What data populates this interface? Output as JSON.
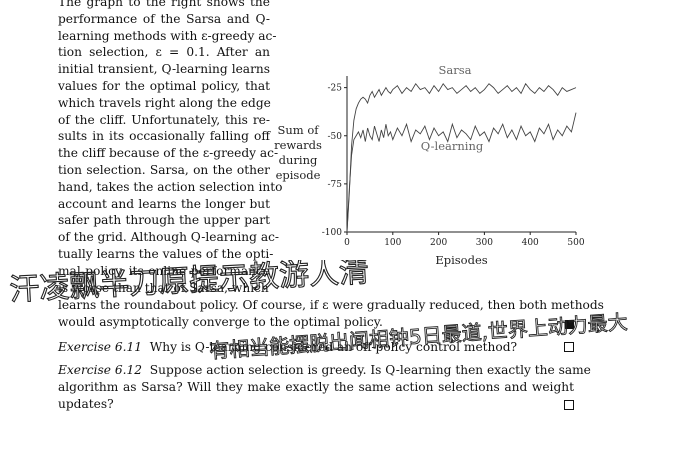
{
  "paragraph": {
    "lines": [
      "The graph to the right shows the",
      "performance of the Sarsa and Q-",
      "learning methods with ε-greedy ac-",
      "tion selection, ε = 0.1. After an",
      "initial transient, Q-learning learns",
      "values for the optimal policy, that",
      "which travels right along the edge",
      "of the cliff. Unfortunately, this re-",
      "sults in its occasionally falling off",
      "the cliff because of the ε-greedy ac-",
      "tion selection. Sarsa, on the other",
      "hand, takes the action selection into",
      "account and learns the longer but",
      "safer path through the upper part",
      "of the grid. Although Q-learning ac-",
      "tually learns the values of the opti-",
      "mal policy, its online performance",
      "is worse than that of Sarsa, which"
    ],
    "full_lines": [
      "learns the roundabout policy. Of course, if ε were gradually reduced, then both methods",
      "would asymptotically converge to the optimal policy."
    ]
  },
  "exercise_611": {
    "label": "Exercise 6.11",
    "text": "Why is Q-learning considered an off-policy control method?"
  },
  "exercise_612": {
    "label": "Exercise 6.12",
    "lines": [
      "Suppose action selection is greedy. Is Q-learning then exactly the same",
      "algorithm as Sarsa? Will they make exactly the same action selections and weight",
      "updates?"
    ]
  },
  "chart_data": {
    "type": "line",
    "xlabel": "Episodes",
    "ylabel": [
      "Sum of",
      "rewards",
      "during",
      "episode"
    ],
    "xlim": [
      0,
      500
    ],
    "ylim": [
      -100,
      -20
    ],
    "xticks": [
      0,
      100,
      200,
      300,
      400,
      500
    ],
    "yticks": [
      -25,
      -50,
      -75,
      -100
    ],
    "ytick_labels": [
      "-25",
      "-50",
      "-75",
      "-100"
    ],
    "series": [
      {
        "name": "Sarsa",
        "x": [
          0,
          5,
          10,
          15,
          20,
          25,
          30,
          35,
          40,
          45,
          50,
          55,
          60,
          65,
          70,
          75,
          80,
          85,
          90,
          95,
          100,
          110,
          120,
          130,
          140,
          150,
          160,
          170,
          180,
          190,
          200,
          210,
          220,
          230,
          240,
          250,
          260,
          270,
          280,
          290,
          300,
          310,
          320,
          330,
          340,
          350,
          360,
          370,
          380,
          390,
          400,
          410,
          420,
          430,
          440,
          450,
          460,
          470,
          480,
          490,
          500
        ],
        "values": [
          -100,
          -80,
          -55,
          -42,
          -36,
          -33,
          -31,
          -30,
          -31,
          -33,
          -29,
          -27,
          -30,
          -28,
          -26,
          -29,
          -27,
          -25,
          -27,
          -28,
          -26,
          -24,
          -28,
          -25,
          -27,
          -23,
          -26,
          -25,
          -28,
          -24,
          -27,
          -23,
          -26,
          -25,
          -28,
          -26,
          -24,
          -27,
          -25,
          -28,
          -26,
          -23,
          -25,
          -28,
          -26,
          -24,
          -27,
          -25,
          -28,
          -23,
          -26,
          -28,
          -25,
          -27,
          -24,
          -26,
          -29,
          -25,
          -27,
          -26,
          -25
        ]
      },
      {
        "name": "Q-learning",
        "x": [
          0,
          5,
          10,
          15,
          20,
          25,
          30,
          35,
          40,
          45,
          50,
          55,
          60,
          65,
          70,
          75,
          80,
          85,
          90,
          95,
          100,
          110,
          120,
          130,
          140,
          150,
          160,
          170,
          180,
          190,
          200,
          210,
          220,
          230,
          240,
          250,
          260,
          270,
          280,
          290,
          300,
          310,
          320,
          330,
          340,
          350,
          360,
          370,
          380,
          390,
          400,
          410,
          420,
          430,
          440,
          450,
          460,
          470,
          480,
          490,
          500
        ],
        "values": [
          -100,
          -78,
          -60,
          -52,
          -50,
          -48,
          -51,
          -47,
          -53,
          -46,
          -50,
          -52,
          -45,
          -49,
          -53,
          -47,
          -51,
          -44,
          -50,
          -48,
          -52,
          -46,
          -50,
          -44,
          -53,
          -47,
          -49,
          -45,
          -52,
          -46,
          -50,
          -48,
          -53,
          -44,
          -51,
          -47,
          -49,
          -52,
          -45,
          -50,
          -48,
          -53,
          -46,
          -49,
          -44,
          -51,
          -47,
          -52,
          -45,
          -50,
          -48,
          -53,
          -46,
          -49,
          -44,
          -52,
          -47,
          -50,
          -45,
          -48,
          -38
        ]
      }
    ]
  },
  "handwriting": {
    "line1": "汗凌飘半刀原提示教游人清",
    "line2": "有相当能摆脱出闻相钟5日最道,世界上动力最大"
  }
}
